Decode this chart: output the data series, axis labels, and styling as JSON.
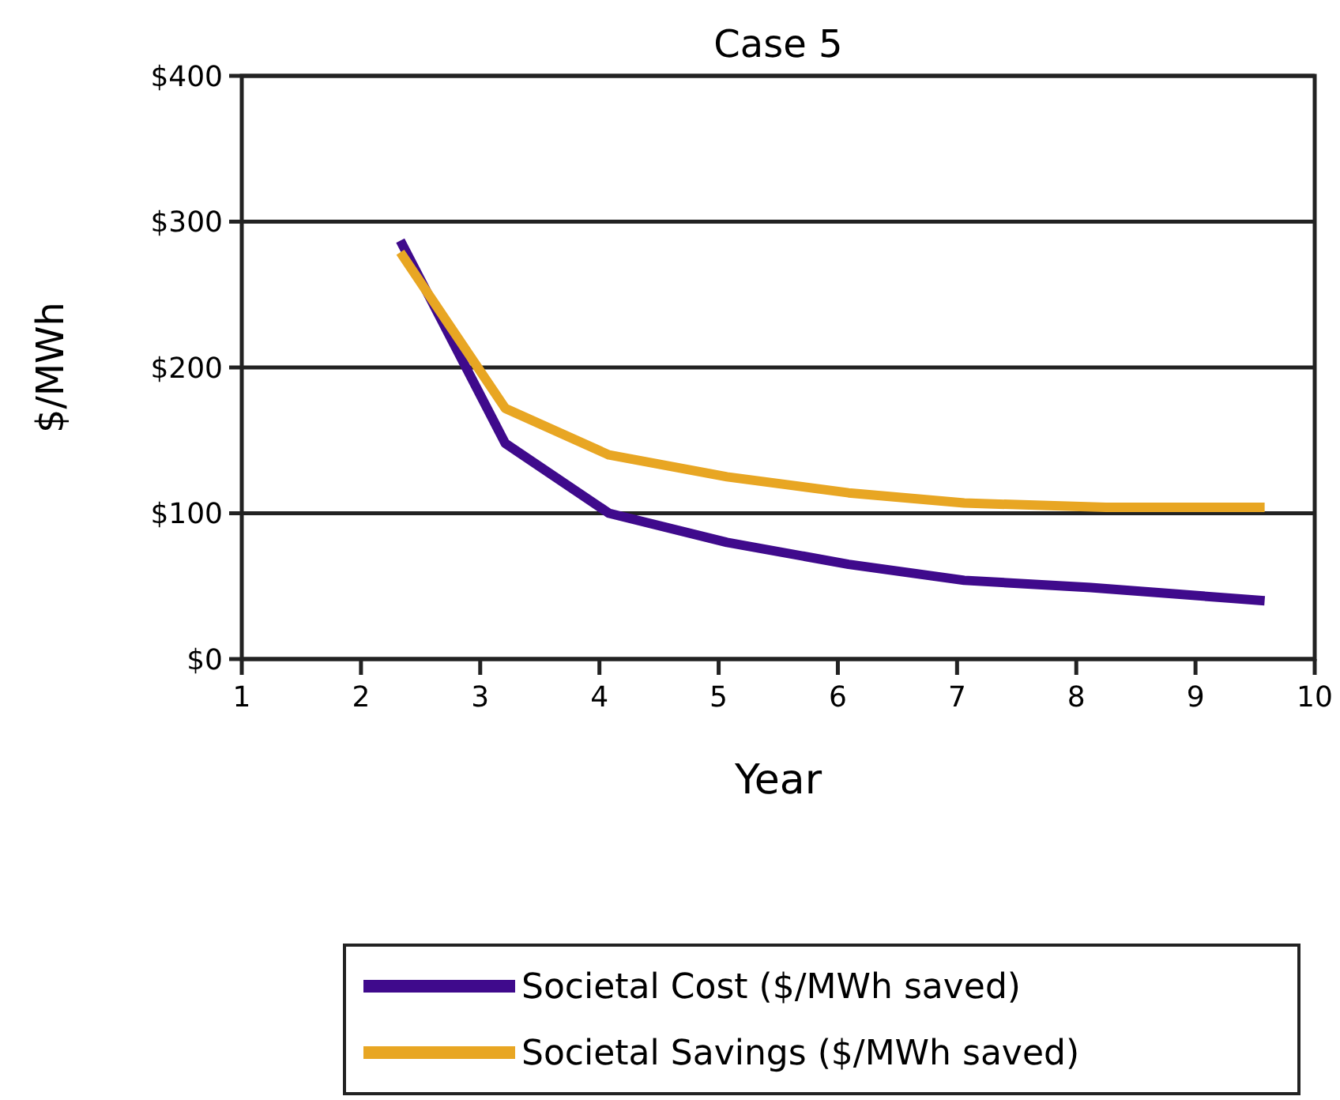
{
  "chart_data": {
    "type": "line",
    "title": "Case 5",
    "xlabel": "Year",
    "ylabel": "$/MWh",
    "xlim": [
      1,
      10
    ],
    "xticks": [
      1,
      2,
      3,
      4,
      5,
      6,
      7,
      8,
      9,
      10
    ],
    "ylim": [
      0,
      400
    ],
    "yticks": [
      {
        "value": 0,
        "label": "$0"
      },
      {
        "value": 100,
        "label": "$100"
      },
      {
        "value": 200,
        "label": "$200"
      },
      {
        "value": 300,
        "label": "$300"
      },
      {
        "value": 400,
        "label": "$400"
      }
    ],
    "grid": "y",
    "legend": "bottom",
    "marker": "none",
    "line_style": "solid",
    "series": [
      {
        "name": "Societal Cost ($/MWh saved)",
        "color": "#3f0a8c",
        "x": [
          2.33,
          3.21,
          4.08,
          5.07,
          6.09,
          7.06,
          8.12,
          9.58
        ],
        "values": [
          287,
          148,
          100,
          80,
          65,
          54,
          49,
          40
        ]
      },
      {
        "name": "Societal Savings ($/MWh saved)",
        "color": "#e8a623",
        "x": [
          2.33,
          3.21,
          4.08,
          5.07,
          6.09,
          7.06,
          8.25,
          9.58
        ],
        "values": [
          279,
          172,
          140,
          125,
          114,
          107,
          104,
          104
        ]
      }
    ]
  }
}
